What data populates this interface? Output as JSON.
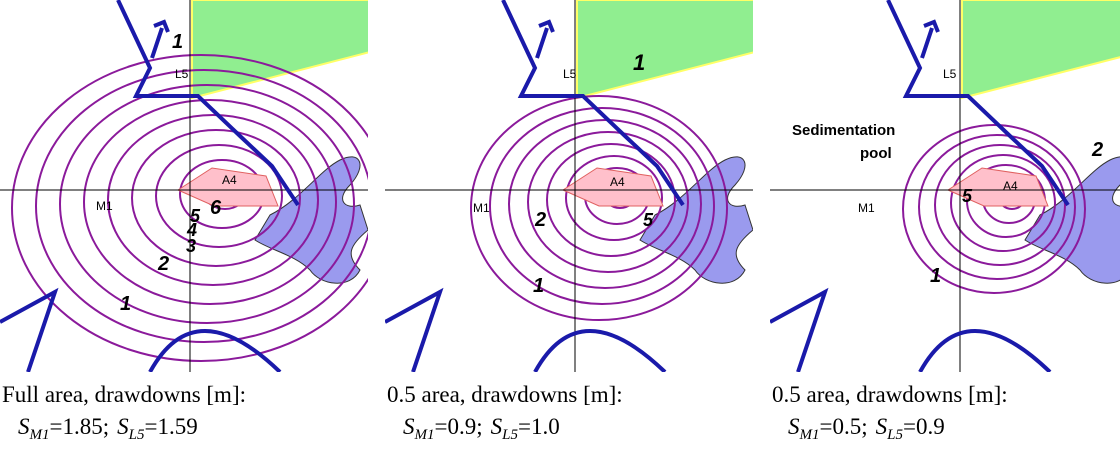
{
  "panels": [
    {
      "map_labels": [
        "1",
        "L5",
        "A4",
        "M1",
        "6",
        "5",
        "4",
        "3",
        "2",
        "1"
      ],
      "caption": {
        "line1": "Full area, drawdowns [m]:",
        "terms": [
          {
            "symbol": "S",
            "sub": "M1",
            "text": "=1.85;"
          },
          {
            "symbol": "S",
            "sub": "L5",
            "text": "=1.59"
          }
        ]
      }
    },
    {
      "map_labels": [
        "1",
        "L5",
        "A4",
        "M1",
        "2",
        "5",
        "1"
      ],
      "caption": {
        "line1": "0.5 area, drawdowns [m]:",
        "terms": [
          {
            "symbol": "S",
            "sub": "M1",
            "text": "=0.9;"
          },
          {
            "symbol": "S",
            "sub": "L5",
            "text": "=1.0"
          }
        ]
      }
    },
    {
      "map_labels": [
        "L5",
        "Sedimentation",
        "pool",
        "A4",
        "M1",
        "2",
        "5",
        "1"
      ],
      "caption": {
        "line1": "0.5 area, drawdowns [m]:",
        "terms": [
          {
            "symbol": "S",
            "sub": "M1",
            "text": "=0.5;"
          },
          {
            "symbol": "S",
            "sub": "L5",
            "text": "=0.9"
          }
        ]
      }
    }
  ]
}
